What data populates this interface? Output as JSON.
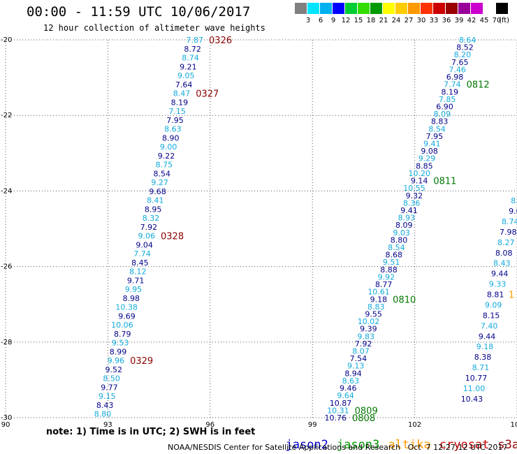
{
  "title": "00:00 - 11:59 UTC 10/06/2017",
  "subtitle": "12 hour collection of altimeter wave heights",
  "colorbar": {
    "labels": [
      "3",
      "6",
      "9",
      "12",
      "15",
      "18",
      "21",
      "24",
      "27",
      "30",
      "33",
      "36",
      "39",
      "42",
      "45",
      "70"
    ],
    "unit": "(ft)",
    "colors": [
      "#808080",
      "#00e5ff",
      "#00b0f0",
      "#0000ff",
      "#00cc33",
      "#33dd00",
      "#009900",
      "#ffff00",
      "#ffcc00",
      "#ff9900",
      "#ff3300",
      "#cc0000",
      "#990000",
      "#990099",
      "#cc00cc",
      "#ffffff",
      "#000000"
    ]
  },
  "note": "note: 1) Time is in UTC; 2) SWH is in feet",
  "legend": [
    {
      "name": "jason2",
      "color": "#0000cc"
    },
    {
      "name": "jason3",
      "color": "#009900"
    },
    {
      "name": "altika",
      "color": "#ff9900"
    },
    {
      "name": "cryosat",
      "color": "#cc0000"
    },
    {
      "name": "s3a",
      "color": "#990000"
    }
  ],
  "footer": "NOAA/NESDIS Center for Satellite Applications and Research   Oct  7 12:27:12 UTC 2017",
  "chart_data": {
    "type": "scatter",
    "title": "00:00 - 11:59 UTC 10/06/2017",
    "subtitle": "12 hour collection of altimeter wave heights",
    "xlim": [
      90,
      105
    ],
    "ylim": [
      -30,
      -20
    ],
    "x_ticks": [
      "90",
      "93",
      "96",
      "99",
      "102",
      "105"
    ],
    "y_ticks": [
      "-20",
      "-22",
      "-24",
      "-26",
      "-28",
      "-30"
    ],
    "grid": true,
    "legend_position": "bottom",
    "colors": {
      "dark": "#00008b",
      "light": "#11aadd",
      "time": "#8b0000",
      "time_green": "#007700",
      "orange": "#ff9900"
    },
    "tracks": [
      {
        "id": "left",
        "x_start": 95.8,
        "y_start": -20.0,
        "x_end": 93.1,
        "y_end": -29.9,
        "values": [
          "7.87",
          "8.72",
          "8.74",
          "9.21",
          "9.05",
          "7.64",
          "8.47",
          "8.19",
          "7.15",
          "7.95",
          "8.63",
          "8.90",
          "9.00",
          "9.22",
          "8.75",
          "8.54",
          "9.27",
          "9.68",
          "8.41",
          "8.95",
          "8.32",
          "7.92",
          "9.06",
          "9.04",
          "7.74",
          "8.45",
          "8.12",
          "9.71",
          "9.95",
          "8.98",
          "10.38",
          "9.69",
          "10.06",
          "8.79",
          "9.53",
          "8.99",
          "9.96",
          "9.52",
          "8.50",
          "9.77",
          "9.15",
          "8.43",
          "8.80"
        ],
        "times": [
          {
            "label": "0326",
            "index": 0
          },
          {
            "label": "0327",
            "index": 6
          },
          {
            "label": "0328",
            "index": 22
          },
          {
            "label": "0329",
            "index": 36
          }
        ]
      },
      {
        "id": "right",
        "x_start": 103.8,
        "y_start": -20.0,
        "x_end": 100.0,
        "y_end": -30.0,
        "values": [
          "8.64",
          "8.52",
          "8.20",
          "7.65",
          "7.46",
          "6.98",
          "7.74",
          "8.19",
          "7.85",
          "6.90",
          "8.09",
          "8.83",
          "8.54",
          "7.95",
          "9.41",
          "9.08",
          "9.29",
          "8.85",
          "10.20",
          "9.14",
          "10.55",
          "9.32",
          "8.36",
          "9.41",
          "8.93",
          "8.09",
          "9.03",
          "8.80",
          "8.54",
          "8.68",
          "9.51",
          "8.88",
          "9.92",
          "8.77",
          "10.61",
          "9.18",
          "8.83",
          "9.55",
          "10.02",
          "9.39",
          "9.83",
          "7.92",
          "8.07",
          "7.54",
          "9.13",
          "8.94",
          "8.63",
          "9.46",
          "9.64",
          "10.87",
          "10.31",
          "10.76"
        ],
        "times": [
          {
            "label": "0812",
            "index": 6
          },
          {
            "label": "0811",
            "index": 19
          },
          {
            "label": "0810",
            "index": 35
          },
          {
            "label": "0809",
            "index": 50
          },
          {
            "label": "0808",
            "index": 51
          }
        ]
      },
      {
        "id": "edge",
        "x_start": 105.3,
        "y_start": -23.7,
        "x_end": 104.0,
        "y_end": -29.5,
        "values": [
          "8",
          "8.",
          "8.9",
          "9.0",
          "8.74",
          "7.98",
          "8.27",
          "8.08",
          "8.43",
          "9.44",
          "9.33",
          "8.81",
          "9.09",
          "8.15",
          "7.40",
          "9.44",
          "9.18",
          "8.38",
          "8.71",
          "10.77",
          "11.00",
          "10.43"
        ],
        "times": [
          {
            "label": "1",
            "index": 11
          }
        ]
      }
    ]
  }
}
